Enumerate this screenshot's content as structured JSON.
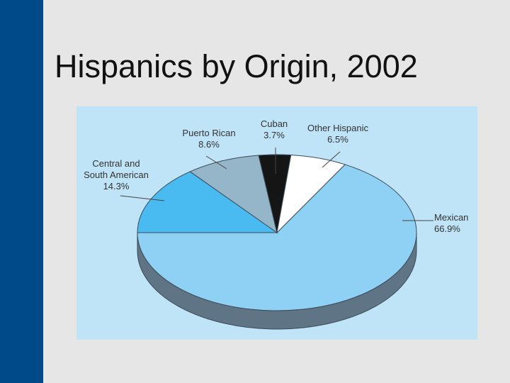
{
  "slide": {
    "title": "Hispanics by Origin, 2002"
  },
  "colors": {
    "sidebar": "#004a8a",
    "background": "#e6e6e6",
    "panel": "#bfe3f7"
  },
  "chart_data": {
    "type": "pie",
    "title": "",
    "three_d": true,
    "slices": [
      {
        "name": "Mexican",
        "label_lines": [
          "Mexican"
        ],
        "value_label": "66.9%",
        "value": 66.9,
        "color": "#8fd1f5",
        "side": "#5f7585"
      },
      {
        "name": "Central and South American",
        "label_lines": [
          "Central and",
          "South American"
        ],
        "value_label": "14.3%",
        "value": 14.3,
        "color": "#49bbf0",
        "side": "#3a7fa3"
      },
      {
        "name": "Puerto Rican",
        "label_lines": [
          "Puerto Rican"
        ],
        "value_label": "8.6%",
        "value": 8.6,
        "color": "#94b6c8",
        "side": "#60798a"
      },
      {
        "name": "Cuban",
        "label_lines": [
          "Cuban"
        ],
        "value_label": "3.7%",
        "value": 3.7,
        "color": "#151515",
        "side": "#0a0a0a"
      },
      {
        "name": "Other Hispanic",
        "label_lines": [
          "Other Hispanic"
        ],
        "value_label": "6.5%",
        "value": 6.5,
        "color": "#ffffff",
        "side": "#b0b0b0"
      }
    ]
  }
}
